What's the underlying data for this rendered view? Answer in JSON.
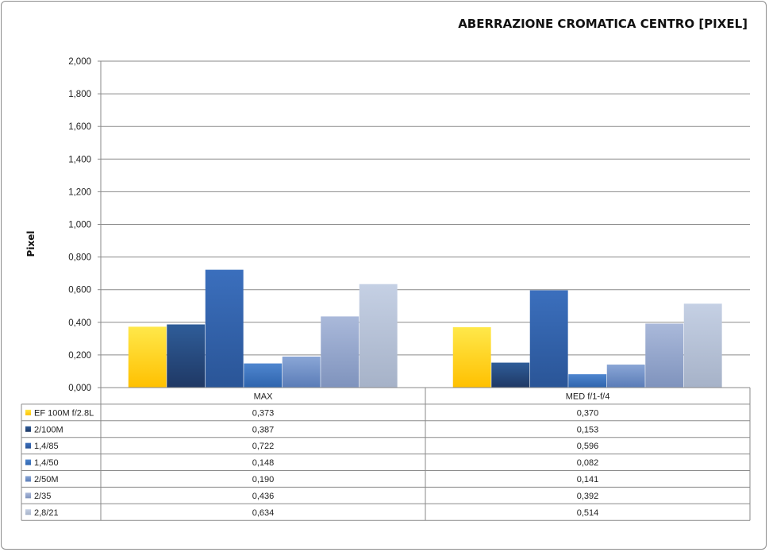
{
  "chart_data": {
    "type": "bar",
    "title": "ABERRAZIONE CROMATICA CENTRO [PIXEL]",
    "ylabel": "Pixel",
    "xlabel": "",
    "ylim": [
      0,
      2
    ],
    "yticks": [
      "0,000",
      "0,200",
      "0,400",
      "0,600",
      "0,800",
      "1,000",
      "1,200",
      "1,400",
      "1,600",
      "1,800",
      "2,000"
    ],
    "grid": true,
    "legend": "data-table",
    "categories": [
      "MAX",
      "MED  f/1-f/4"
    ],
    "series": [
      {
        "name": "EF 100M f/2.8L",
        "values": [
          0.373,
          0.37
        ],
        "labels": [
          "0,373",
          "0,370"
        ],
        "color": "#ffc000",
        "color_light": "#ffe84a"
      },
      {
        "name": "2/100M",
        "values": [
          0.387,
          0.153
        ],
        "labels": [
          "0,387",
          "0,153"
        ],
        "color": "#1f3864",
        "color_light": "#2f5d99"
      },
      {
        "name": "1,4/85",
        "values": [
          0.722,
          0.596
        ],
        "labels": [
          "0,722",
          "0,596"
        ],
        "color": "#2a5597",
        "color_light": "#3b6fbd"
      },
      {
        "name": "1,4/50",
        "values": [
          0.148,
          0.082
        ],
        "labels": [
          "0,148",
          "0,082"
        ],
        "color": "#2e64ad",
        "color_light": "#4f86cf"
      },
      {
        "name": "2/50M",
        "values": [
          0.19,
          0.141
        ],
        "labels": [
          "0,190",
          "0,141"
        ],
        "color": "#5a7cb7",
        "color_light": "#8aa6d6"
      },
      {
        "name": "2/35",
        "values": [
          0.436,
          0.392
        ],
        "labels": [
          "0,436",
          "0,392"
        ],
        "color": "#7f93bd",
        "color_light": "#aab9da"
      },
      {
        "name": "2,8/21",
        "values": [
          0.634,
          0.514
        ],
        "labels": [
          "0,634",
          "0,514"
        ],
        "color": "#a6b2c8",
        "color_light": "#c5d0e4"
      }
    ]
  }
}
